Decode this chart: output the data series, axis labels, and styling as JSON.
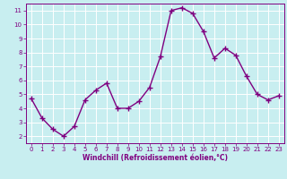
{
  "x": [
    0,
    1,
    2,
    3,
    4,
    5,
    6,
    7,
    8,
    9,
    10,
    11,
    12,
    13,
    14,
    15,
    16,
    17,
    18,
    19,
    20,
    21,
    22,
    23
  ],
  "y": [
    4.7,
    3.3,
    2.5,
    2.0,
    2.7,
    4.6,
    5.3,
    5.8,
    4.0,
    4.0,
    4.5,
    5.5,
    7.7,
    11.0,
    11.2,
    10.8,
    9.5,
    7.6,
    8.3,
    7.8,
    6.3,
    5.0,
    4.6,
    4.9
  ],
  "line_color": "#800080",
  "marker": "+",
  "marker_color": "#800080",
  "bg_color": "#C8EEF0",
  "grid_color": "#FFFFFF",
  "xlabel": "Windchill (Refroidissement éolien,°C)",
  "xlabel_color": "#800080",
  "tick_color": "#800080",
  "xlim": [
    -0.5,
    23.5
  ],
  "ylim": [
    1.5,
    11.5
  ],
  "yticks": [
    2,
    3,
    4,
    5,
    6,
    7,
    8,
    9,
    10,
    11
  ],
  "xticks": [
    0,
    1,
    2,
    3,
    4,
    5,
    6,
    7,
    8,
    9,
    10,
    11,
    12,
    13,
    14,
    15,
    16,
    17,
    18,
    19,
    20,
    21,
    22,
    23
  ],
  "spine_color": "#800080",
  "linewidth": 1.0,
  "markersize": 4,
  "tick_fontsize": 5.5,
  "xlabel_fontsize": 5.5
}
